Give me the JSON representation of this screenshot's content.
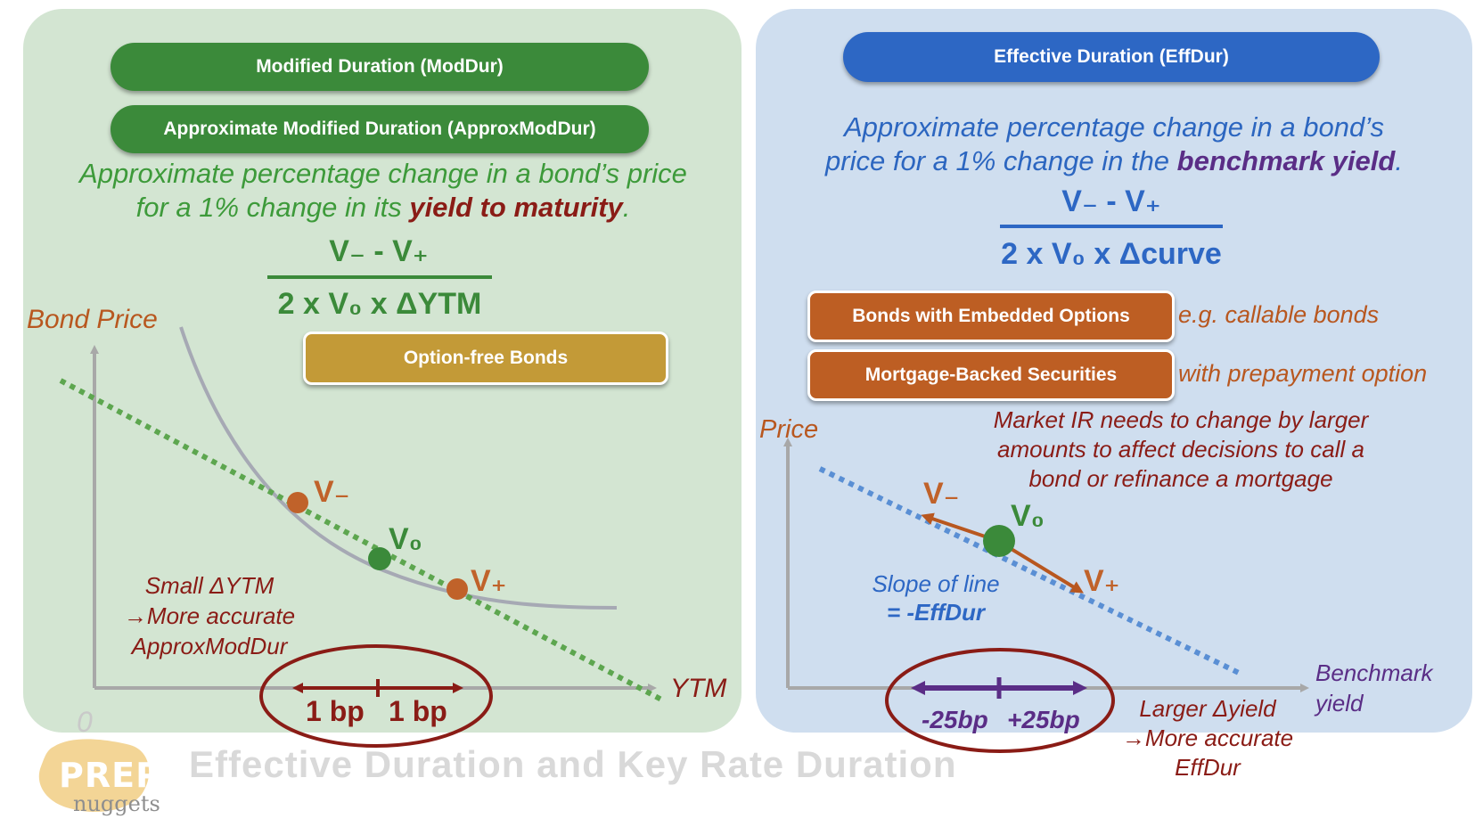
{
  "left": {
    "pill_moddur": "Modified Duration (ModDur)",
    "pill_approx": "Approximate Modified Duration (ApproxModDur)",
    "desc_line1": "Approximate percentage change in a bond’s price",
    "desc_line2_a": "for a 1% change in its ",
    "desc_line2_em": "yield to maturity",
    "desc_line2_b": ".",
    "formula_num": "V₋ - V₊",
    "formula_den": "2 x V₀ x ΔYTM",
    "pill_option_free": "Option-free Bonds",
    "axis_y": "Bond Price",
    "axis_x": "YTM",
    "origin": "0",
    "label_vminus": "V₋",
    "label_v0": "V₀",
    "label_vplus": "V₊",
    "note_line1": "Small ΔYTM",
    "note_line2": "→More accurate",
    "note_line3": "ApproxModDur",
    "bp_left": "1 bp",
    "bp_right": "1 bp"
  },
  "right": {
    "pill_effdur": "Effective Duration (EffDur)",
    "desc_line1": "Approximate percentage change in a bond’s",
    "desc_line2_a": "price for a 1% change in the ",
    "desc_line2_em": "benchmark yield",
    "desc_line2_b": ".",
    "formula_num": "V₋ - V₊",
    "formula_den": "2 x V₀ x Δcurve",
    "pill_embedded": "Bonds with Embedded Options",
    "pill_mbs": "Mortgage-Backed Securities",
    "note_callable": "e.g. callable bonds",
    "note_prepay": "with prepayment option",
    "market_line1": "Market IR needs to change by larger",
    "market_line2": "amounts to affect decisions to call a",
    "market_line3": "bond or refinance a mortgage",
    "axis_y": "Price",
    "axis_x_line1": "Benchmark",
    "axis_x_line2": "yield",
    "label_vminus": "V₋",
    "label_v0": "V₀",
    "label_vplus": "V₊",
    "slope_line1": "Slope of line",
    "slope_line2": "= -EffDur",
    "bp_left": "-25bp",
    "bp_right": "+25bp",
    "larger_line1": "Larger Δyield",
    "larger_line2": "→More accurate",
    "larger_line3": "EffDur"
  },
  "footer": {
    "title": "Effective Duration and Key Rate Duration",
    "logo_prep": "PREP",
    "logo_nuggets": "nuggets"
  },
  "colors": {
    "green": "#3b8a3a",
    "blue": "#2d67c4",
    "rust": "#bd5e23",
    "gold": "#c39a37",
    "dark_red": "#8a1c16",
    "purple": "#5a2d86"
  }
}
